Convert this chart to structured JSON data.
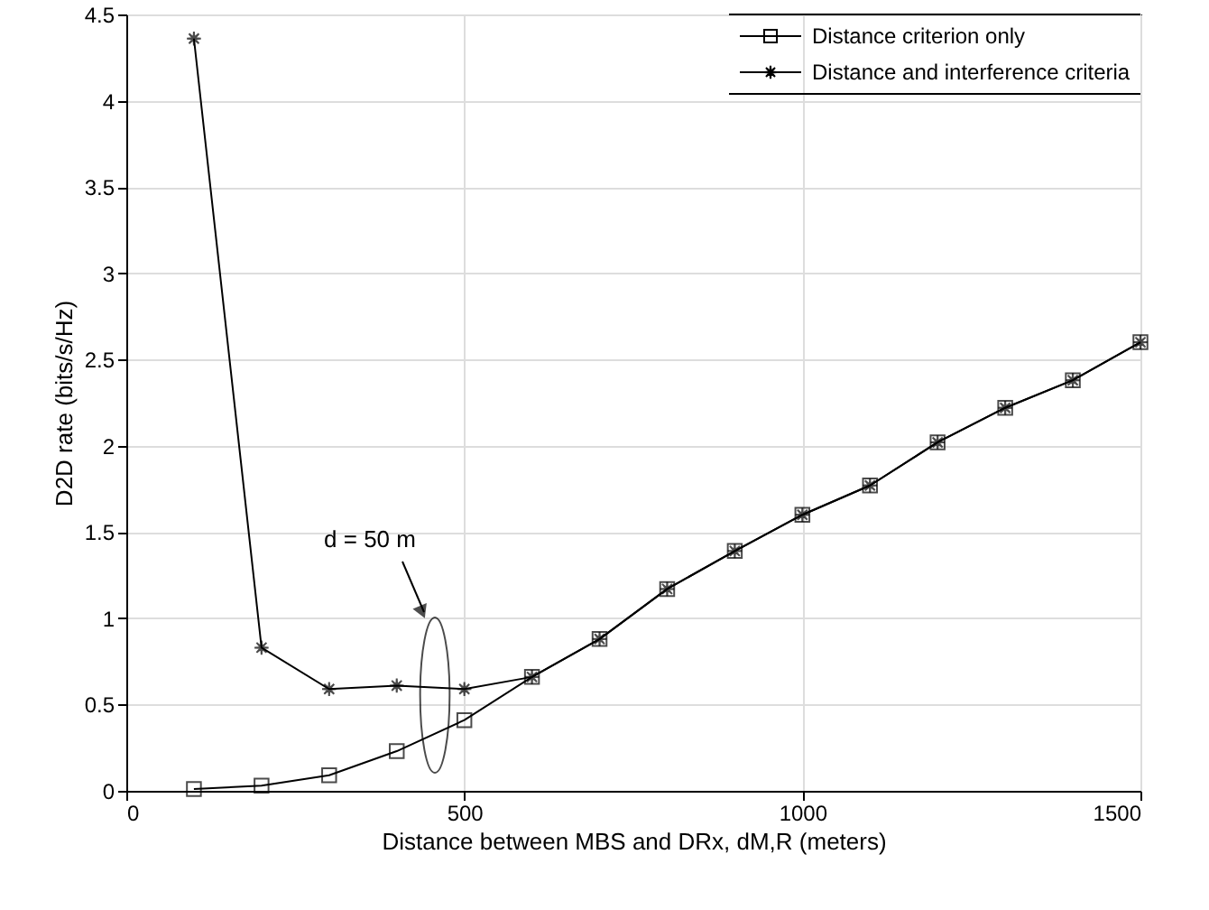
{
  "chart_data": {
    "type": "line",
    "xlabel": "Distance between MBS and DRx, dM,R (meters)",
    "ylabel": "D2D rate (bits/s/Hz)",
    "x": [
      100,
      200,
      300,
      400,
      500,
      600,
      700,
      800,
      900,
      1000,
      1100,
      1200,
      1300,
      1400,
      1500
    ],
    "series": [
      {
        "name": "Distance criterion only",
        "color": "#000000",
        "marker": "square",
        "values": [
          0.01,
          0.03,
          0.09,
          0.23,
          0.41,
          0.66,
          0.88,
          1.17,
          1.39,
          1.6,
          1.77,
          2.02,
          2.22,
          2.38,
          2.6
        ]
      },
      {
        "name": "Distance and interference criteria",
        "color": "#000000",
        "marker": "star",
        "values": [
          4.36,
          0.83,
          0.59,
          0.61,
          0.59,
          0.66,
          0.88,
          1.17,
          1.39,
          1.6,
          1.77,
          2.02,
          2.22,
          2.38,
          2.6
        ]
      }
    ],
    "xlim": [
      0,
      1500
    ],
    "xticks": [
      0,
      500,
      1000,
      1500
    ],
    "ylim": [
      0,
      4.5
    ],
    "yticks": [
      0,
      0.5,
      1,
      1.5,
      2,
      2.5,
      3,
      3.5,
      4,
      4.5
    ],
    "grid": true,
    "legend": "top right",
    "line_style": "solid",
    "annotations": [
      "d = 50 m"
    ]
  }
}
